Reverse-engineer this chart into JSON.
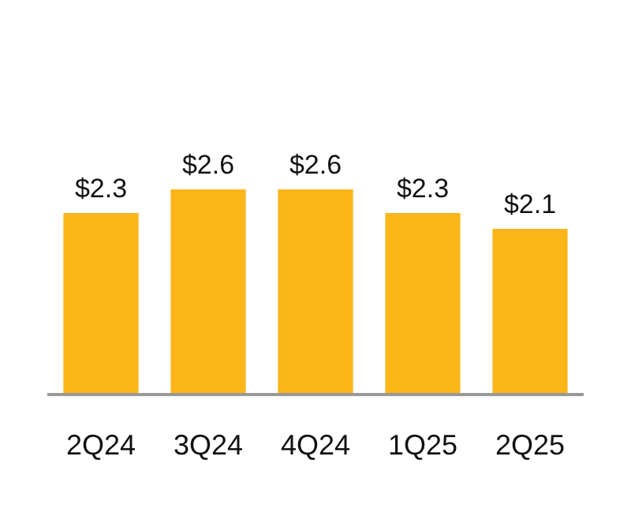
{
  "chart_data": {
    "type": "bar",
    "categories": [
      "2Q24",
      "3Q24",
      "4Q24",
      "1Q25",
      "2Q25"
    ],
    "values": [
      2.3,
      2.6,
      2.6,
      2.3,
      2.1
    ],
    "value_labels": [
      "$2.3",
      "$2.6",
      "$2.6",
      "$2.3",
      "$2.1"
    ],
    "color": "#fcb61a"
  }
}
